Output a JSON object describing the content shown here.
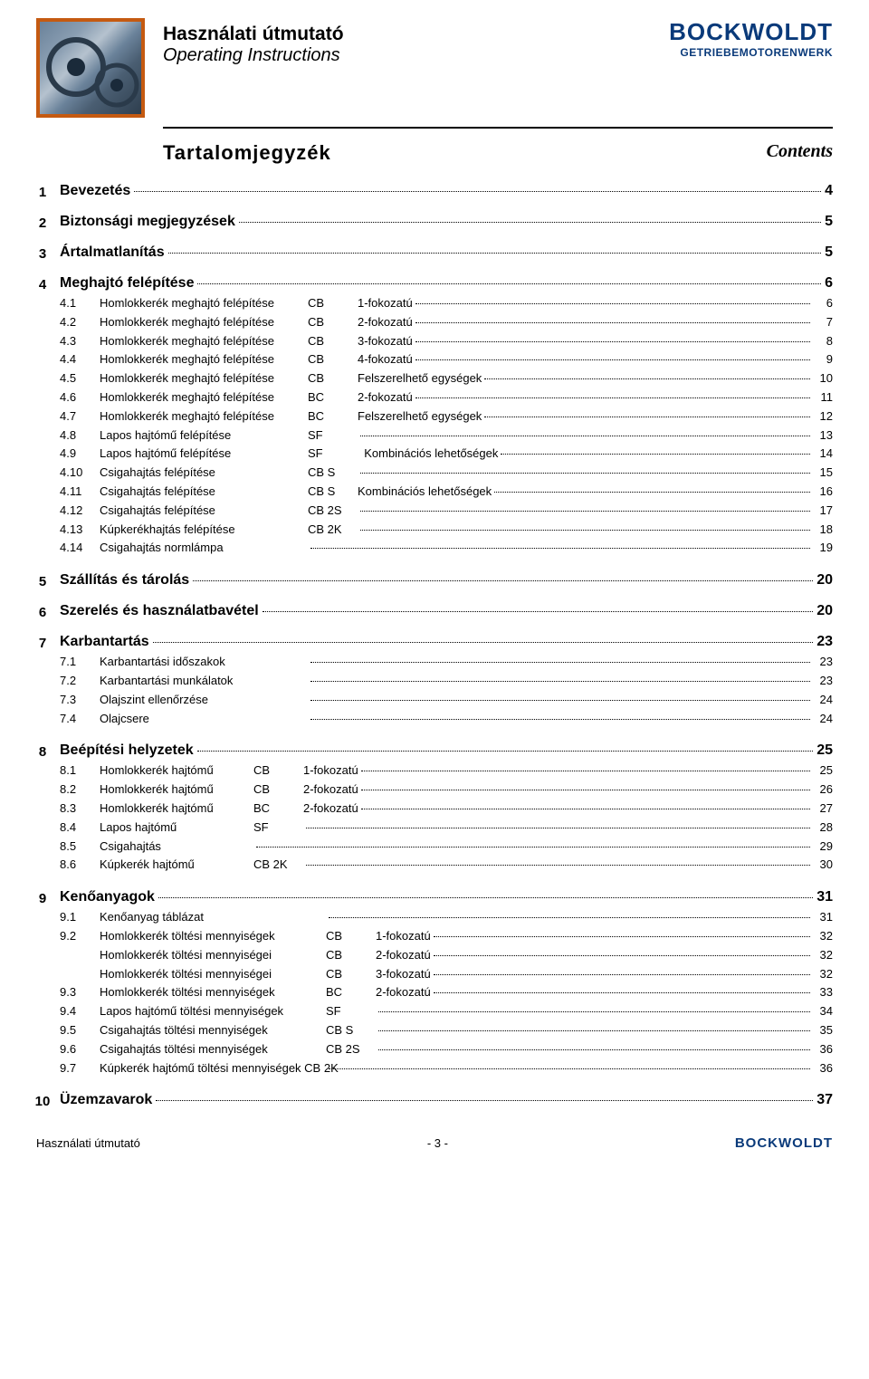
{
  "header": {
    "title_main": "Használati útmutató",
    "title_sub": "Operating Instructions",
    "brand_name": "BOCKWOLDT",
    "brand_sub": "GETRIEBEMOTORENWERK",
    "section_left": "Tartalomjegyzék",
    "section_right": "Contents"
  },
  "colors": {
    "brand_blue": "#0a3a7a",
    "accent_orange": "#c55a11",
    "text_black": "#000000",
    "bg_white": "#ffffff"
  },
  "sections": [
    {
      "num": "1",
      "title": "Bevezetés",
      "page": "4",
      "subs": []
    },
    {
      "num": "2",
      "title": "Biztonsági megjegyzések",
      "page": "5",
      "subs": []
    },
    {
      "num": "3",
      "title": "Ártalmatlanítás",
      "page": "5",
      "subs": []
    },
    {
      "num": "4",
      "title": "Meghajtó felépítése",
      "page": "6",
      "subs": [
        {
          "n": "4.1",
          "label": "Homlokkerék meghajtó felépítése",
          "code": "CB",
          "desc": "1-fokozatú",
          "page": "6"
        },
        {
          "n": "4.2",
          "label": "Homlokkerék meghajtó felépítése",
          "code": "CB",
          "desc": "2-fokozatú",
          "page": "7"
        },
        {
          "n": "4.3",
          "label": "Homlokkerék meghajtó felépítése",
          "code": "CB",
          "desc": "3-fokozatú",
          "page": "8"
        },
        {
          "n": "4.4",
          "label": "Homlokkerék meghajtó felépítése",
          "code": "CB",
          "desc": "4-fokozatú",
          "page": "9"
        },
        {
          "n": "4.5",
          "label": "Homlokkerék meghajtó felépítése",
          "code": "CB",
          "desc": "Felszerelhető egységek",
          "page": "10"
        },
        {
          "n": "4.6",
          "label": "Homlokkerék meghajtó felépítése",
          "code": "BC",
          "desc": "2-fokozatú",
          "page": "11"
        },
        {
          "n": "4.7",
          "label": "Homlokkerék meghajtó felépítése",
          "code": "BC",
          "desc": "Felszerelhető egységek",
          "page": "12"
        },
        {
          "n": "4.8",
          "label": "Lapos hajtómű felépítése",
          "code": "SF",
          "desc": "",
          "page": "13"
        },
        {
          "n": "4.9",
          "label": "Lapos hajtómű felépítése",
          "code": "SF",
          "desc": "  Kombinációs lehetőségek",
          "page": "14"
        },
        {
          "n": "4.10",
          "label": "Csigahajtás felépítése",
          "code": "CB S",
          "desc": "",
          "page": "15"
        },
        {
          "n": "4.11",
          "label": "Csigahajtás felépítése",
          "code": "CB S",
          "desc": "Kombinációs lehetőségek",
          "page": "16"
        },
        {
          "n": "4.12",
          "label": "Csigahajtás felépítése",
          "code": "CB 2S",
          "desc": "",
          "page": "17"
        },
        {
          "n": "4.13",
          "label": "Kúpkerékhajtás felépítése",
          "code": "CB 2K",
          "desc": "",
          "page": "18"
        },
        {
          "n": "4.14",
          "label": "Csigahajtás normlámpa",
          "code": "",
          "desc": "",
          "page": "19"
        }
      ]
    },
    {
      "num": "5",
      "title": "Szállítás és tárolás",
      "page": "20",
      "subs": []
    },
    {
      "num": "6",
      "title": "Szerelés és használatbavétel",
      "page": "20",
      "subs": []
    },
    {
      "num": "7",
      "title": "Karbantartás",
      "page": "23",
      "subs": [
        {
          "n": "7.1",
          "label": "Karbantartási időszakok",
          "code": "",
          "desc": "",
          "page": "23"
        },
        {
          "n": "7.2",
          "label": "Karbantartási munkálatok",
          "code": "",
          "desc": "",
          "page": "23"
        },
        {
          "n": "7.3",
          "label": "Olajszint ellenőrzése",
          "code": "",
          "desc": "",
          "page": "24"
        },
        {
          "n": "7.4",
          "label": "Olajcsere",
          "code": "",
          "desc": "",
          "page": "24"
        }
      ]
    },
    {
      "num": "8",
      "title": "Beépítési helyzetek",
      "page": "25",
      "subs": [
        {
          "n": "8.1",
          "label": "Homlokkerék hajtómű",
          "code": "CB",
          "desc": "1-fokozatú",
          "page": "25"
        },
        {
          "n": "8.2",
          "label": "Homlokkerék hajtómű",
          "code": "CB",
          "desc": "2-fokozatú",
          "page": "26"
        },
        {
          "n": "8.3",
          "label": "Homlokkerék hajtómű",
          "code": "BC",
          "desc": "2-fokozatú",
          "page": "27"
        },
        {
          "n": "8.4",
          "label": "Lapos hajtómű",
          "code": "SF",
          "desc": "",
          "page": "28"
        },
        {
          "n": "8.5",
          "label": "Csigahajtás",
          "code": "",
          "desc": "",
          "page": "29"
        },
        {
          "n": "8.6",
          "label": "Kúpkerék hajtómű",
          "code": "CB 2K",
          "desc": "",
          "page": "30"
        }
      ]
    },
    {
      "num": "9",
      "title": "Kenőanyagok",
      "page": "31",
      "subs": [
        {
          "n": "9.1",
          "label": "Kenőanyag táblázat",
          "code": "",
          "desc": "",
          "page": "31"
        },
        {
          "n": "9.2",
          "label": "Homlokkerék töltési mennyiségek",
          "code": "CB",
          "desc": "1-fokozatú",
          "page": "32"
        },
        {
          "n": "",
          "label": "Homlokkerék töltési mennyiségei",
          "code": "CB",
          "desc": "2-fokozatú",
          "page": "32"
        },
        {
          "n": "",
          "label": "Homlokkerék töltési mennyiségei",
          "code": "CB",
          "desc": "3-fokozatú",
          "page": "32"
        },
        {
          "n": "9.3",
          "label": "Homlokkerék töltési mennyiségek",
          "code": "BC",
          "desc": "2-fokozatú",
          "page": "33"
        },
        {
          "n": "9.4",
          "label": "Lapos hajtómű töltési mennyiségek",
          "code": "SF",
          "desc": "",
          "page": "34"
        },
        {
          "n": "9.5",
          "label": "Csigahajtás töltési mennyiségek",
          "code": "CB S",
          "desc": "",
          "page": "35"
        },
        {
          "n": "9.6",
          "label": "Csigahajtás töltési mennyiségek",
          "code": "CB 2S",
          "desc": "",
          "page": "36"
        },
        {
          "n": "9.7",
          "label": "Kúpkerék hajtómű töltési mennyiségek CB 2K",
          "code": "",
          "desc": "",
          "page": "36"
        }
      ]
    },
    {
      "num": "10",
      "title": "Üzemzavarok",
      "page": "37",
      "subs": []
    }
  ],
  "column_widths": {
    "label_w_4": 230,
    "label_w_7": 230,
    "label_w_8": 170,
    "label_w_9": 250,
    "code_w": 50,
    "code_w_short": 65,
    "code_w_long": 65
  },
  "footer": {
    "left": "Használati útmutató",
    "center": "- 3 -",
    "right": "BOCKWOLDT"
  }
}
